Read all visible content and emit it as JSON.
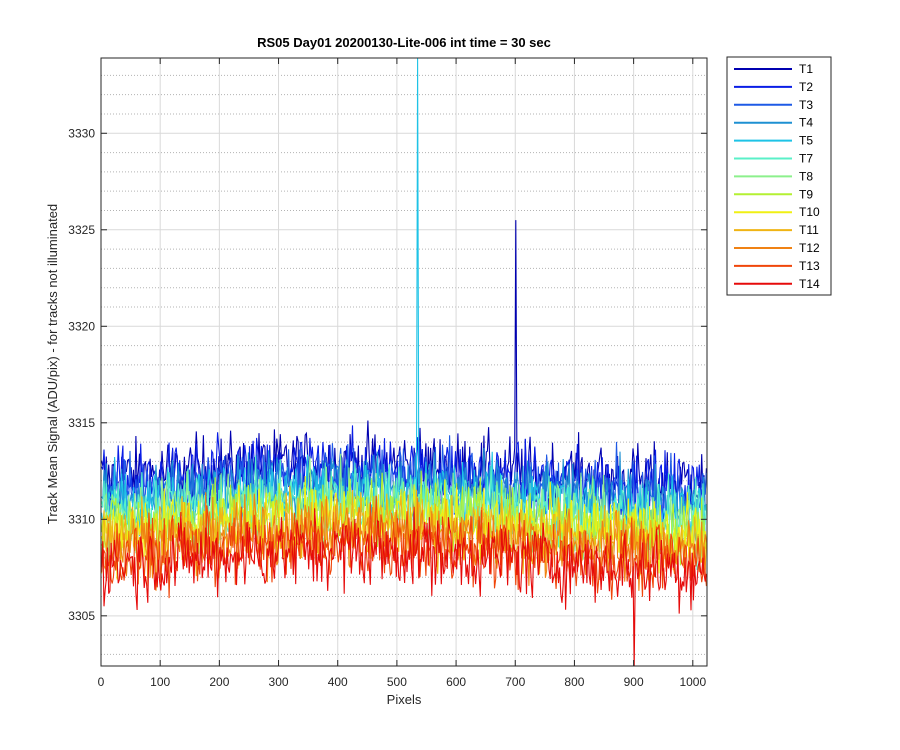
{
  "chart_data": {
    "type": "line",
    "title": "RS05 Day01 20200130-Lite-006 int time = 30 sec",
    "xlabel": "Pixels",
    "ylabel": "Track Mean Signal (ADU/pix) - for tracks not illuminated",
    "xlim": [
      0,
      1024
    ],
    "ylim": [
      3302.4,
      3333.9
    ],
    "xticks": [
      0,
      100,
      200,
      300,
      400,
      500,
      600,
      700,
      800,
      900,
      1000
    ],
    "yticks": [
      3305,
      3310,
      3315,
      3320,
      3325,
      3330
    ],
    "grid": "major and minor (dotted)",
    "legend_position": "outside top-right",
    "series": [
      {
        "name": "T1",
        "color": "#0000b0",
        "level": 3311.8,
        "noise": 1.3,
        "spikes": [
          {
            "x": 700,
            "y": 3325.5
          }
        ]
      },
      {
        "name": "T2",
        "color": "#0a1ee6",
        "level": 3311.5,
        "noise": 1.3
      },
      {
        "name": "T3",
        "color": "#1e5ae6",
        "level": 3311.1,
        "noise": 1.3
      },
      {
        "name": "T4",
        "color": "#1e90d2",
        "level": 3310.7,
        "noise": 1.3
      },
      {
        "name": "T5",
        "color": "#1ec3e6",
        "level": 3310.3,
        "noise": 1.3,
        "spikes": [
          {
            "x": 535,
            "y": 3333.9
          }
        ]
      },
      {
        "name": "T7",
        "color": "#5af0c8",
        "level": 3310.0,
        "noise": 1.3
      },
      {
        "name": "T8",
        "color": "#8cf08c",
        "level": 3309.6,
        "noise": 1.3
      },
      {
        "name": "T9",
        "color": "#b4f032",
        "level": 3309.3,
        "noise": 1.3
      },
      {
        "name": "T10",
        "color": "#f0f014",
        "level": 3309.0,
        "noise": 1.3
      },
      {
        "name": "T11",
        "color": "#f0b414",
        "level": 3308.6,
        "noise": 1.3
      },
      {
        "name": "T12",
        "color": "#f08214",
        "level": 3308.2,
        "noise": 1.3
      },
      {
        "name": "T13",
        "color": "#f0460a",
        "level": 3307.7,
        "noise": 1.3
      },
      {
        "name": "T14",
        "color": "#e60a0a",
        "level": 3307.3,
        "noise": 1.4,
        "spikes": [
          {
            "x": 900,
            "y": 3302.4
          }
        ]
      }
    ]
  }
}
